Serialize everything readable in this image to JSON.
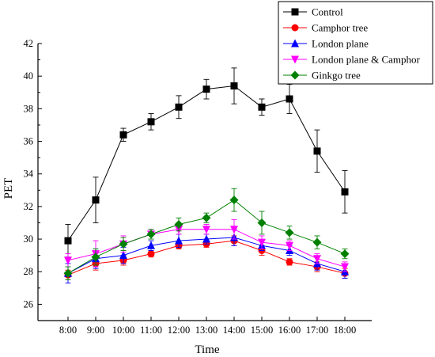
{
  "chart_data": {
    "type": "line",
    "xlabel": "Time",
    "ylabel": "PET",
    "categories": [
      "8:00",
      "9:00",
      "10:00",
      "11:00",
      "12:00",
      "13:00",
      "14:00",
      "15:00",
      "16:00",
      "17:00",
      "18:00"
    ],
    "ylim": [
      25,
      42
    ],
    "yticks": [
      26,
      28,
      30,
      32,
      34,
      36,
      38,
      40,
      42
    ],
    "grid": false,
    "legend": "top-right",
    "series": [
      {
        "name": "Control",
        "color": "#000000",
        "marker": "square",
        "values": [
          29.9,
          32.4,
          36.4,
          37.2,
          38.1,
          39.2,
          39.4,
          38.1,
          38.6,
          35.4,
          32.9
        ],
        "errors": [
          1.0,
          1.4,
          0.4,
          0.5,
          0.7,
          0.6,
          1.1,
          0.5,
          0.9,
          1.3,
          1.3
        ]
      },
      {
        "name": "Camphor tree",
        "color": "#ff0000",
        "marker": "circle",
        "values": [
          27.8,
          28.5,
          28.7,
          29.1,
          29.6,
          29.7,
          29.9,
          29.3,
          28.6,
          28.3,
          27.9
        ],
        "errors": [
          0.3,
          0.4,
          0.3,
          0.2,
          0.2,
          0.2,
          0.3,
          0.3,
          0.2,
          0.3,
          0.3
        ]
      },
      {
        "name": "London plane",
        "color": "#0000ff",
        "marker": "triangle-up",
        "values": [
          27.9,
          28.8,
          29.0,
          29.6,
          29.9,
          30.0,
          30.1,
          29.6,
          29.3,
          28.5,
          28.0
        ],
        "errors": [
          0.6,
          0.6,
          0.5,
          0.3,
          0.4,
          0.3,
          0.5,
          0.3,
          0.3,
          0.4,
          0.4
        ]
      },
      {
        "name": "London plane & Camphor",
        "color": "#ff00ff",
        "marker": "triangle-down",
        "values": [
          28.7,
          29.1,
          29.7,
          30.3,
          30.6,
          30.6,
          30.6,
          29.8,
          29.6,
          28.8,
          28.3
        ],
        "errors": [
          0.4,
          0.8,
          0.5,
          0.3,
          0.3,
          0.3,
          0.6,
          0.4,
          0.3,
          0.3,
          0.3
        ]
      },
      {
        "name": "Ginkgo tree",
        "color": "#008000",
        "marker": "diamond",
        "values": [
          27.9,
          28.9,
          29.7,
          30.3,
          30.9,
          31.3,
          32.4,
          31.0,
          30.4,
          29.8,
          29.1
        ],
        "errors": [
          0.4,
          0.5,
          0.4,
          0.3,
          0.4,
          0.3,
          0.7,
          0.7,
          0.4,
          0.4,
          0.3
        ]
      }
    ]
  }
}
